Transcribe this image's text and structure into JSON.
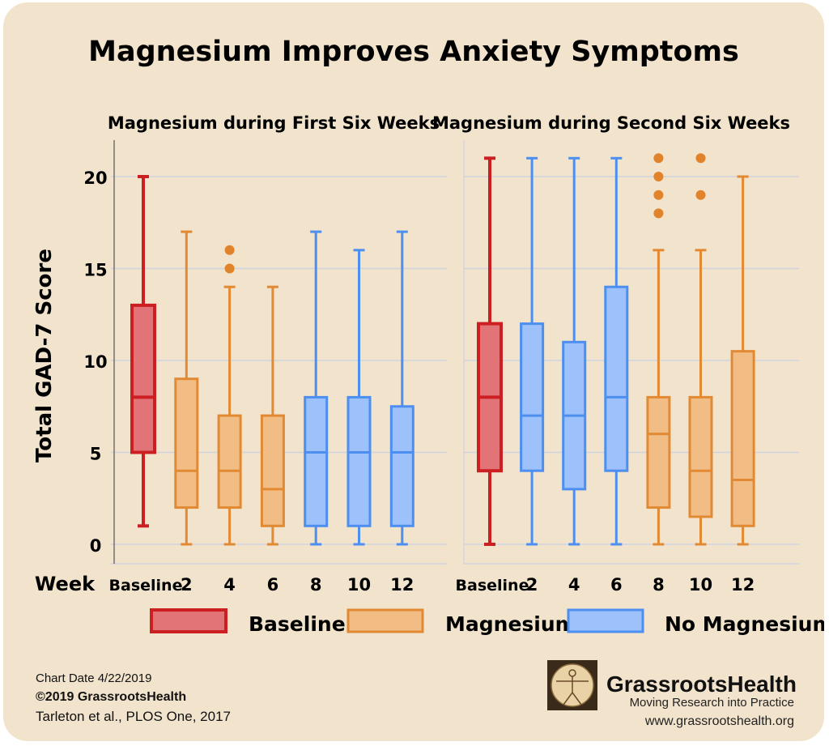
{
  "title": "Magnesium Improves Anxiety Symptoms",
  "ylabel": "Total GAD-7 Score",
  "xlabel": "Week",
  "colors": {
    "background": "#f1e3cc",
    "gridline": "#cfd3de",
    "baseline_fill": "#e27478",
    "baseline_stroke": "#cc1f22",
    "magnesium_fill": "#f2bc85",
    "magnesium_stroke": "#e28a33",
    "nomag_fill": "#9dc1fa",
    "nomag_stroke": "#4d8ff0",
    "outlier": "#e0832a"
  },
  "legend": [
    {
      "label": "Baseline",
      "group": "baseline"
    },
    {
      "label": "Magnesium",
      "group": "magnesium"
    },
    {
      "label": "No Magnesium",
      "group": "nomag"
    }
  ],
  "footer": {
    "chart_date": "Chart Date 4/22/2019",
    "copyright": "©2019 GrassrootsHealth",
    "citation": "Tarleton et al., PLOS One, 2017",
    "brand_name": "GrassrootsHealth",
    "brand_tagline": "Moving Research into Practice",
    "brand_url": "www.grassrootshealth.org"
  },
  "chart_data": [
    {
      "type": "box",
      "title": "Magnesium during First Six Weeks",
      "ylabel": "Total GAD-7 Score",
      "xlabel": "Week",
      "ylim": [
        0,
        21
      ],
      "yticks": [
        0,
        5,
        10,
        15,
        20
      ],
      "grid": true,
      "categories": [
        "Baseline",
        "2",
        "4",
        "6",
        "8",
        "10",
        "12"
      ],
      "boxes": [
        {
          "week": "Baseline",
          "group": "baseline",
          "min": 1,
          "q1": 5,
          "median": 8,
          "q3": 13,
          "max": 20,
          "outliers": []
        },
        {
          "week": "2",
          "group": "magnesium",
          "min": 0,
          "q1": 2,
          "median": 4,
          "q3": 9,
          "max": 17,
          "outliers": []
        },
        {
          "week": "4",
          "group": "magnesium",
          "min": 0,
          "q1": 2,
          "median": 4,
          "q3": 7,
          "max": 14,
          "outliers": [
            15,
            16
          ]
        },
        {
          "week": "6",
          "group": "magnesium",
          "min": 0,
          "q1": 1,
          "median": 3,
          "q3": 7,
          "max": 14,
          "outliers": []
        },
        {
          "week": "8",
          "group": "nomag",
          "min": 0,
          "q1": 1,
          "median": 5,
          "q3": 8,
          "max": 17,
          "outliers": []
        },
        {
          "week": "10",
          "group": "nomag",
          "min": 0,
          "q1": 1,
          "median": 5,
          "q3": 8,
          "max": 16,
          "outliers": []
        },
        {
          "week": "12",
          "group": "nomag",
          "min": 0,
          "q1": 1,
          "median": 5,
          "q3": 7.5,
          "max": 17,
          "outliers": []
        }
      ]
    },
    {
      "type": "box",
      "title": "Magnesium during Second Six Weeks",
      "ylim": [
        0,
        21
      ],
      "grid": true,
      "categories": [
        "Baseline",
        "2",
        "4",
        "6",
        "8",
        "10",
        "12"
      ],
      "boxes": [
        {
          "week": "Baseline",
          "group": "baseline",
          "min": 0,
          "q1": 4,
          "median": 8,
          "q3": 12,
          "max": 21,
          "outliers": []
        },
        {
          "week": "2",
          "group": "nomag",
          "min": 0,
          "q1": 4,
          "median": 7,
          "q3": 12,
          "max": 21,
          "outliers": []
        },
        {
          "week": "4",
          "group": "nomag",
          "min": 0,
          "q1": 3,
          "median": 7,
          "q3": 11,
          "max": 21,
          "outliers": []
        },
        {
          "week": "6",
          "group": "nomag",
          "min": 0,
          "q1": 4,
          "median": 8,
          "q3": 14,
          "max": 21,
          "outliers": []
        },
        {
          "week": "8",
          "group": "magnesium",
          "min": 0,
          "q1": 2,
          "median": 6,
          "q3": 8,
          "max": 16,
          "outliers": [
            18,
            19,
            20,
            21
          ]
        },
        {
          "week": "10",
          "group": "magnesium",
          "min": 0,
          "q1": 1.5,
          "median": 4,
          "q3": 8,
          "max": 16,
          "outliers": [
            19,
            21
          ]
        },
        {
          "week": "12",
          "group": "magnesium",
          "min": 0,
          "q1": 1,
          "median": 3.5,
          "q3": 10.5,
          "max": 20,
          "outliers": []
        }
      ]
    }
  ]
}
